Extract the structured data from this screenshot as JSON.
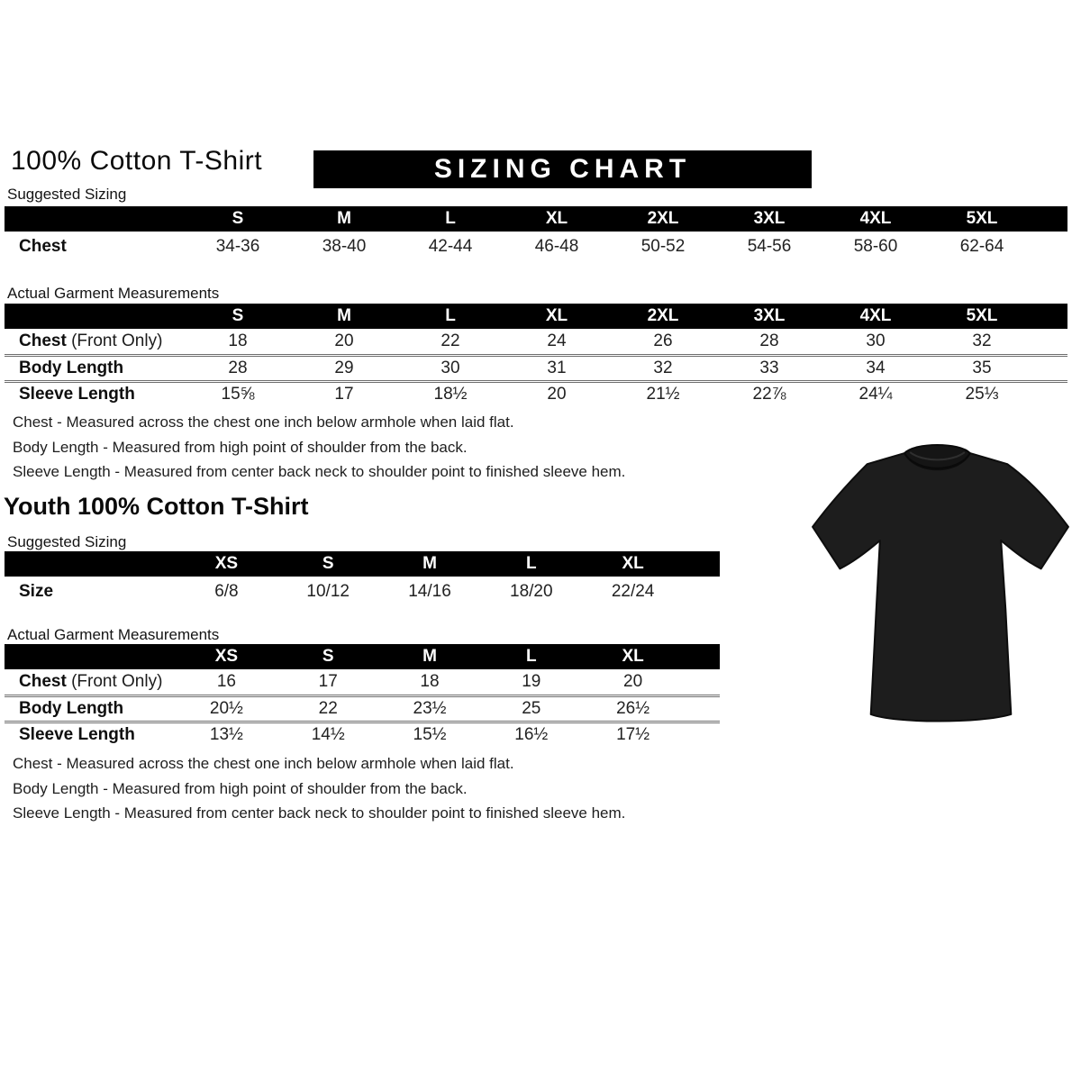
{
  "colors": {
    "header_bg": "#000000",
    "header_text": "#ffffff",
    "tshirt_fill": "#1d1d1d",
    "tshirt_outline": "#0d0d0d"
  },
  "adult": {
    "title": "100% Cotton T-Shirt",
    "banner": "SIZING CHART",
    "suggested_label": "Suggested Sizing",
    "actual_label": "Actual Garment Measurements",
    "suggested": {
      "columns": [
        "S",
        "M",
        "L",
        "XL",
        "2XL",
        "3XL",
        "4XL",
        "5XL"
      ],
      "rows": [
        {
          "label": "Chest",
          "label_rest": "",
          "values": [
            "34-36",
            "38-40",
            "42-44",
            "46-48",
            "50-52",
            "54-56",
            "58-60",
            "62-64"
          ]
        }
      ]
    },
    "actual": {
      "columns": [
        "S",
        "M",
        "L",
        "XL",
        "2XL",
        "3XL",
        "4XL",
        "5XL"
      ],
      "rows": [
        {
          "label": "Chest",
          "label_rest": "(Front Only)",
          "values": [
            "18",
            "20",
            "22",
            "24",
            "26",
            "28",
            "30",
            "32"
          ]
        },
        {
          "label": "Body Length",
          "label_rest": "",
          "values": [
            "28",
            "29",
            "30",
            "31",
            "32",
            "33",
            "34",
            "35"
          ]
        },
        {
          "label": "Sleeve Length",
          "label_rest": "",
          "values": [
            "15⅝",
            "17",
            "18½",
            "20",
            "21½",
            "22⅞",
            "24¼",
            "25⅓"
          ]
        }
      ]
    },
    "notes": [
      "Chest - Measured across the chest one inch below armhole when laid flat.",
      "Body Length - Measured from high point of shoulder from the back.",
      "Sleeve Length - Measured from center back neck to shoulder point to finished sleeve hem."
    ]
  },
  "youth": {
    "title": "Youth 100% Cotton T-Shirt",
    "suggested_label": "Suggested Sizing",
    "actual_label": "Actual Garment Measurements",
    "suggested": {
      "columns": [
        "XS",
        "S",
        "M",
        "L",
        "XL"
      ],
      "rows": [
        {
          "label": "Size",
          "label_rest": "",
          "values": [
            "6/8",
            "10/12",
            "14/16",
            "18/20",
            "22/24"
          ]
        }
      ]
    },
    "actual": {
      "columns": [
        "XS",
        "S",
        "M",
        "L",
        "XL"
      ],
      "rows": [
        {
          "label": "Chest",
          "label_rest": "(Front Only)",
          "values": [
            "16",
            "17",
            "18",
            "19",
            "20"
          ]
        },
        {
          "label": "Body Length",
          "label_rest": "",
          "values": [
            "20½",
            "22",
            "23½",
            "25",
            "26½"
          ]
        },
        {
          "label": "Sleeve Length",
          "label_rest": "",
          "values": [
            "13½",
            "14½",
            "15½",
            "16½",
            "17½"
          ]
        }
      ]
    },
    "notes": [
      "Chest - Measured across the chest one inch below armhole when laid flat.",
      "Body Length - Measured from high point of shoulder from the back.",
      "Sleeve Length - Measured from center back neck to shoulder point to finished sleeve hem."
    ]
  },
  "tshirt_image": {
    "description": "black short-sleeve crew-neck t-shirt"
  }
}
